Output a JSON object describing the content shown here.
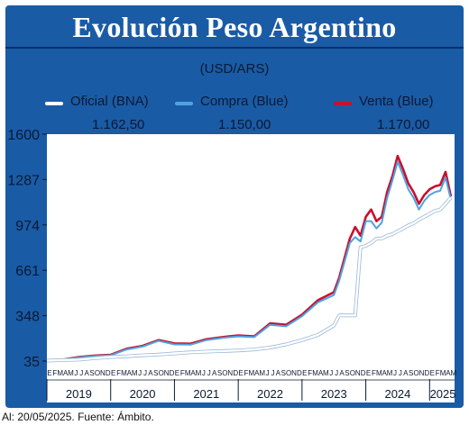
{
  "header": {
    "title": "Evolución Peso Argentino",
    "unit": "(USD/ARS)"
  },
  "legend": [
    {
      "name": "Oficial (BNA)",
      "value": "1.162,50",
      "color": "#ffffff"
    },
    {
      "name": "Compra (Blue)",
      "value": "1.150,00",
      "color": "#4fa3e0"
    },
    {
      "name": "Venta (Blue)",
      "value": "1.170,00",
      "color": "#c8102e"
    }
  ],
  "footer": {
    "note": "Al: 20/05/2025. Fuente: Ámbito."
  },
  "colors": {
    "panel": "#1a5ba6",
    "plot": "#ffffff",
    "oficial": "#ffffff",
    "compra": "#4fa3e0",
    "venta": "#c8102e"
  },
  "chart_data": {
    "type": "line",
    "title": "Evolución Peso Argentino",
    "ylabel": "(USD/ARS)",
    "xlabel": "",
    "ylim": [
      35,
      1600
    ],
    "yticks": [
      "1600",
      "1287",
      "974",
      "661",
      "348",
      "35"
    ],
    "ytick_values": [
      1600,
      1287,
      974,
      661,
      348,
      35
    ],
    "grid": false,
    "legend_position": "top",
    "x_range": [
      "2019-01",
      "2025-05"
    ],
    "years": [
      "2019",
      "2020",
      "2021",
      "2022",
      "2023",
      "2024",
      "2025"
    ],
    "month_letters_full": [
      "E",
      "F",
      "M",
      "A",
      "M",
      "J",
      "J",
      "A",
      "S",
      "O",
      "N",
      "D"
    ],
    "month_letters_2025": [
      "E",
      "F",
      "M",
      "A",
      "M"
    ],
    "x": [
      "2019-01",
      "2019-04",
      "2019-07",
      "2019-10",
      "2020-01",
      "2020-04",
      "2020-07",
      "2020-10",
      "2021-01",
      "2021-04",
      "2021-07",
      "2021-10",
      "2022-01",
      "2022-04",
      "2022-07",
      "2022-10",
      "2023-01",
      "2023-04",
      "2023-07",
      "2023-08",
      "2023-10",
      "2023-11",
      "2023-12",
      "2024-01",
      "2024-02",
      "2024-03",
      "2024-04",
      "2024-05",
      "2024-06",
      "2024-07",
      "2024-08",
      "2024-09",
      "2024-10",
      "2024-11",
      "2024-12",
      "2025-01",
      "2025-02",
      "2025-03",
      "2025-04",
      "2025-05"
    ],
    "series": [
      {
        "name": "Oficial (BNA)",
        "values": [
          38,
          42,
          45,
          55,
          63,
          68,
          75,
          80,
          88,
          95,
          100,
          104,
          108,
          115,
          128,
          150,
          180,
          215,
          280,
          350,
          350,
          350,
          820,
          830,
          850,
          880,
          880,
          900,
          910,
          930,
          950,
          970,
          985,
          1010,
          1030,
          1050,
          1070,
          1080,
          1120,
          1162.5
        ]
      },
      {
        "name": "Compra (Blue)",
        "values": [
          37,
          43,
          60,
          70,
          75,
          115,
          135,
          175,
          150,
          148,
          180,
          195,
          205,
          200,
          285,
          275,
          345,
          440,
          490,
          590,
          850,
          890,
          860,
          1000,
          1000,
          950,
          990,
          1160,
          1280,
          1410,
          1320,
          1220,
          1160,
          1080,
          1140,
          1180,
          1200,
          1210,
          1300,
          1150
        ]
      },
      {
        "name": "Venta (Blue)",
        "values": [
          39,
          45,
          63,
          73,
          78,
          120,
          140,
          180,
          157,
          155,
          185,
          200,
          212,
          205,
          295,
          285,
          355,
          455,
          510,
          610,
          880,
          960,
          900,
          1030,
          1080,
          1000,
          1030,
          1200,
          1310,
          1450,
          1360,
          1260,
          1200,
          1120,
          1180,
          1220,
          1240,
          1250,
          1340,
          1170
        ]
      }
    ]
  }
}
